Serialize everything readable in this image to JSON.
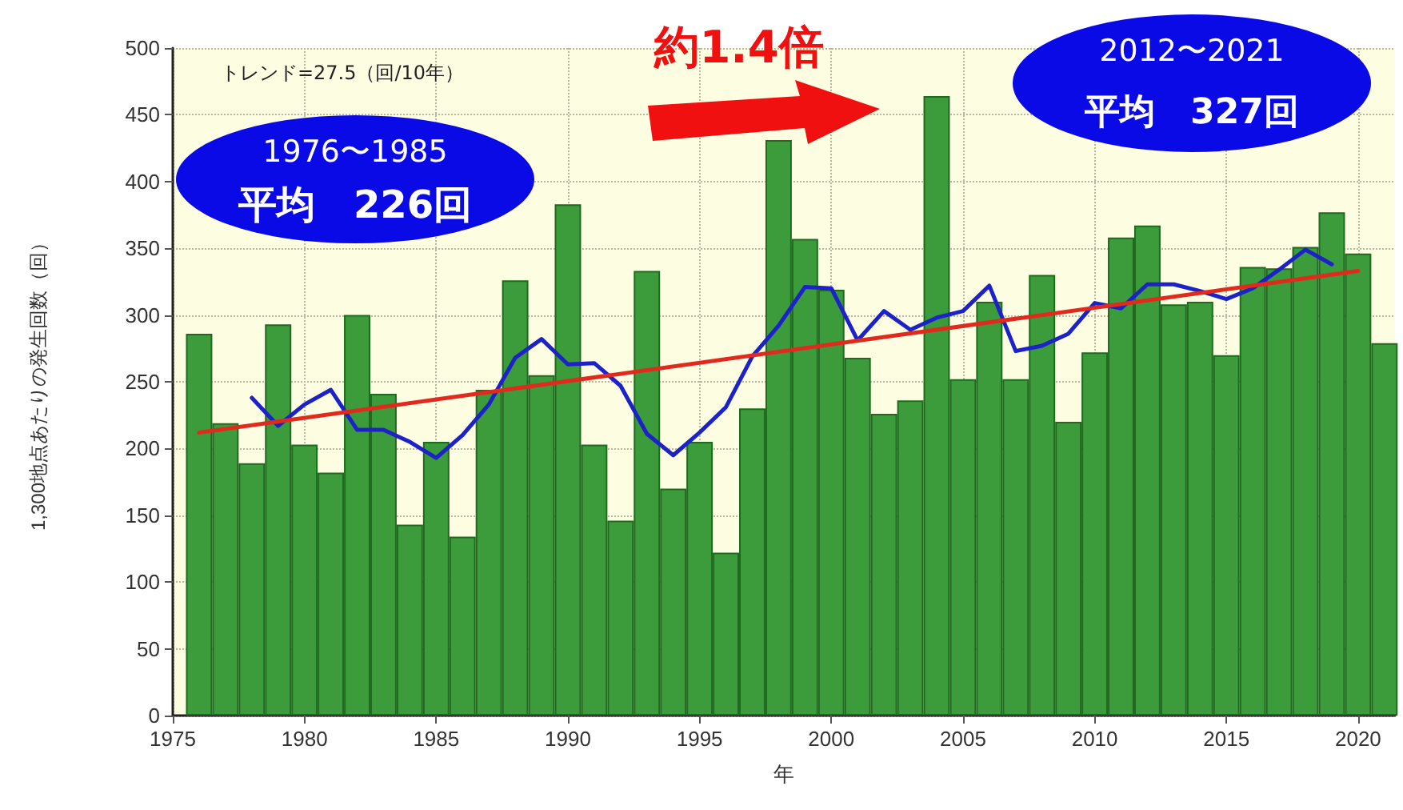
{
  "chart_data": {
    "type": "bar",
    "xlabel": "年",
    "ylabel": "1,300地点あたりの発生回数（回）",
    "annotations": [
      "トレンド=27.5（回/10年）",
      "約1.4倍",
      "1976〜1985",
      "平均　226回",
      "2012〜2021",
      "平均　327回"
    ],
    "x": [
      1976,
      1977,
      1978,
      1979,
      1980,
      1981,
      1982,
      1983,
      1984,
      1985,
      1986,
      1987,
      1988,
      1989,
      1990,
      1991,
      1992,
      1993,
      1994,
      1995,
      1996,
      1997,
      1998,
      1999,
      2000,
      2001,
      2002,
      2003,
      2004,
      2005,
      2006,
      2007,
      2008,
      2009,
      2010,
      2011,
      2012,
      2013,
      2014,
      2015,
      2016,
      2017,
      2018,
      2019,
      2020,
      2021
    ],
    "series": [
      {
        "color": "#3c9c3c",
        "values": [
          286,
          219,
          189,
          293,
          203,
          182,
          300,
          241,
          143,
          205,
          134,
          244,
          326,
          255,
          383,
          203,
          146,
          333,
          170,
          205,
          122,
          230,
          431,
          357,
          319,
          268,
          226,
          236,
          464,
          252,
          310,
          252,
          330,
          220,
          272,
          358,
          367,
          308,
          310,
          270,
          336,
          335,
          351,
          377,
          346,
          279
        ]
      },
      {
        "type": "line",
        "color": "#1c22c8",
        "x": [
          1978,
          1979,
          1980,
          1981,
          1982,
          1983,
          1984,
          1985,
          1986,
          1987,
          1988,
          1989,
          1990,
          1991,
          1992,
          1993,
          1994,
          1995,
          1996,
          1997,
          1998,
          1999,
          2000,
          2001,
          2002,
          2003,
          2004,
          2005,
          2006,
          2007,
          2008,
          2009,
          2010,
          2011,
          2012,
          2013,
          2014,
          2015,
          2016,
          2017,
          2018,
          2019
        ],
        "values": [
          238,
          217,
          233,
          244,
          214,
          214,
          205,
          193,
          210,
          233,
          268,
          282,
          263,
          264,
          247,
          211,
          195,
          212,
          231,
          269,
          292,
          321,
          320,
          281,
          303,
          289,
          298,
          303,
          322,
          273,
          277,
          286,
          309,
          305,
          323,
          323,
          318,
          312,
          320,
          334,
          349,
          338
        ]
      },
      {
        "type": "line",
        "color": "#e02a1e",
        "x": [
          1976,
          2020
        ],
        "values": [
          212,
          333
        ]
      }
    ],
    "xlim": [
      1975,
      2021.4
    ],
    "xticks": [
      1975,
      1980,
      1985,
      1990,
      1995,
      2000,
      2005,
      2010,
      2015,
      2020
    ],
    "ylim": [
      0,
      500
    ],
    "yticks": [
      0,
      50,
      100,
      150,
      200,
      250,
      300,
      350,
      400,
      450,
      500
    ],
    "grid": true,
    "marker": "none",
    "line_style": "solid"
  }
}
